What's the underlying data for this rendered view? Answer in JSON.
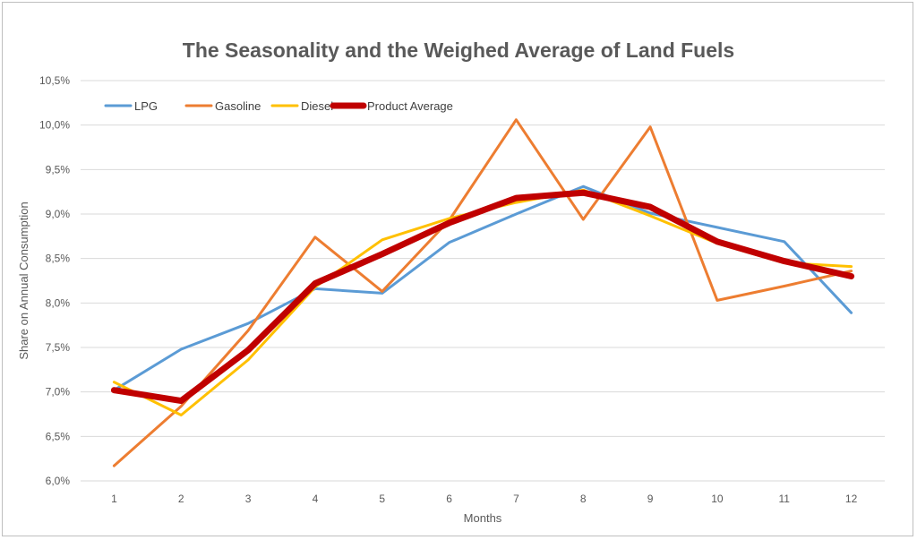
{
  "chart_data": {
    "type": "line",
    "title": "The Seasonality and the Weighed Average of Land Fuels",
    "xlabel": "Months",
    "ylabel": "Share on Annual Consumption",
    "x": [
      1,
      2,
      3,
      4,
      5,
      6,
      7,
      8,
      9,
      10,
      11,
      12
    ],
    "ylim": [
      6.0,
      10.5
    ],
    "yticks": [
      "6,0%",
      "6,5%",
      "7,0%",
      "7,5%",
      "8,0%",
      "8,5%",
      "9,0%",
      "9,5%",
      "10,0%",
      "10,5%"
    ],
    "grid": true,
    "legend_position": "top-left",
    "series": [
      {
        "name": "LPG",
        "color": "#5b9bd5",
        "width": 3,
        "values": [
          7.02,
          7.48,
          7.77,
          8.16,
          8.11,
          8.68,
          9.0,
          9.31,
          9.01,
          8.85,
          8.69,
          7.89
        ]
      },
      {
        "name": "Gasoline",
        "color": "#ed7d31",
        "width": 3,
        "values": [
          6.17,
          6.84,
          7.69,
          8.74,
          8.13,
          8.93,
          10.06,
          8.94,
          9.98,
          8.03,
          8.19,
          8.36
        ]
      },
      {
        "name": "Diesel",
        "color": "#ffc000",
        "width": 3,
        "values": [
          7.11,
          6.74,
          7.36,
          8.18,
          8.71,
          8.95,
          9.13,
          9.27,
          8.98,
          8.67,
          8.45,
          8.41
        ]
      },
      {
        "name": "Product Average",
        "color": "#c00000",
        "width": 7,
        "values": [
          7.02,
          6.9,
          7.47,
          8.22,
          8.55,
          8.9,
          9.18,
          9.24,
          9.08,
          8.69,
          8.47,
          8.3
        ]
      }
    ]
  }
}
